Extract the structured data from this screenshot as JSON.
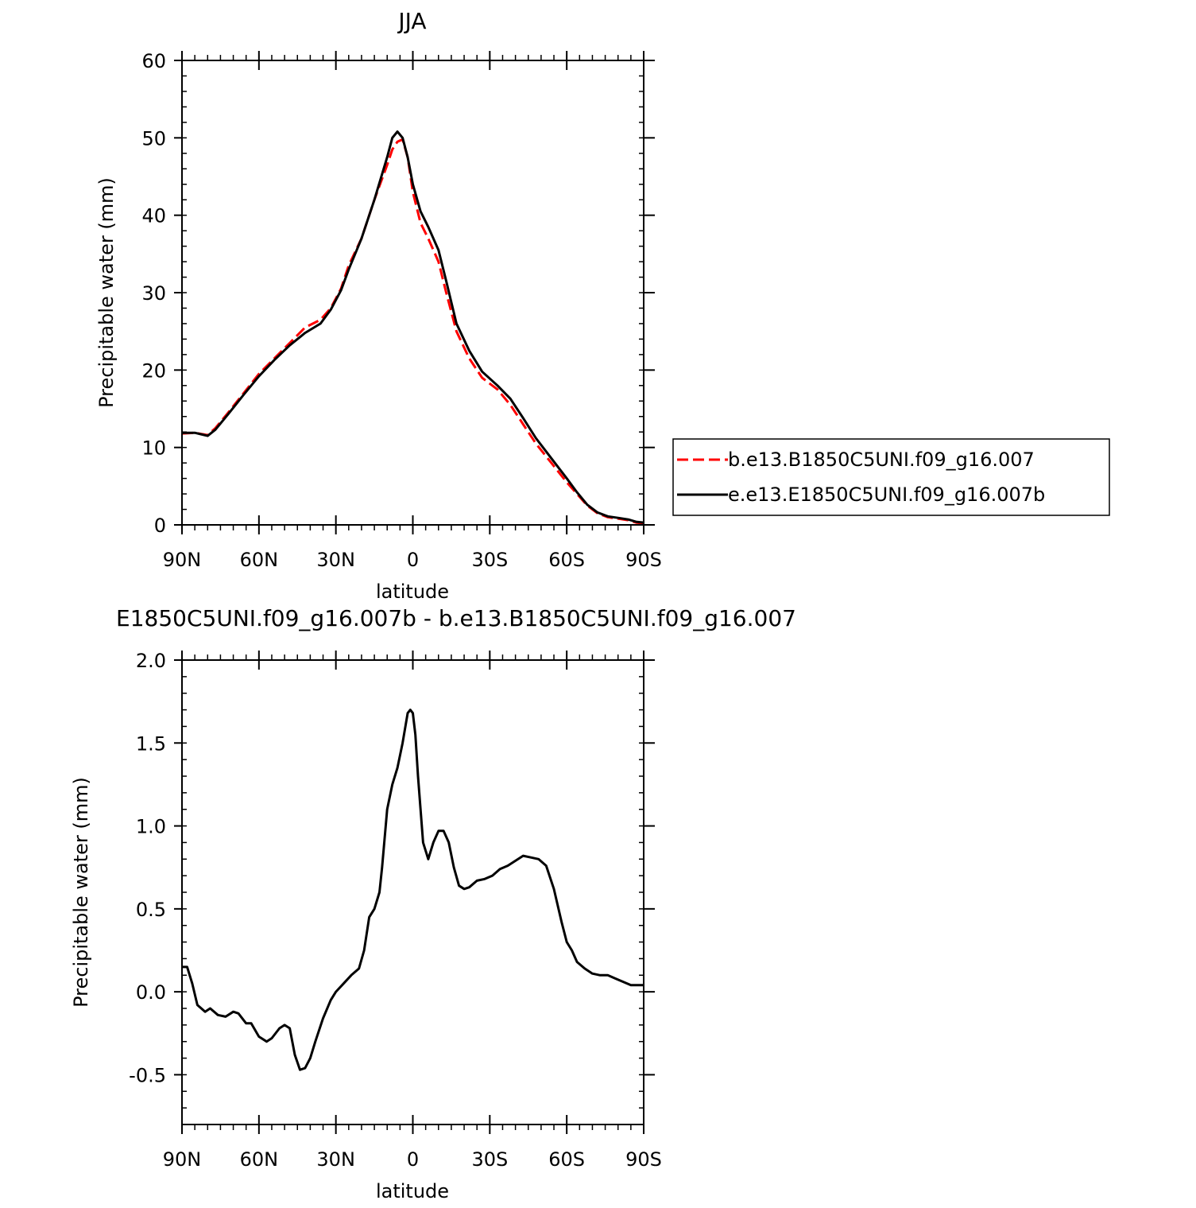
{
  "chart_data": [
    {
      "type": "line",
      "title": "JJA",
      "xlabel": "latitude",
      "ylabel": "Precipitable water (mm)",
      "xlim": [
        90,
        -90
      ],
      "ylim": [
        0,
        60
      ],
      "x_ticks": [
        90,
        60,
        30,
        0,
        -30,
        -60,
        -90
      ],
      "x_tick_labels": [
        "90N",
        "60N",
        "30N",
        "0",
        "30S",
        "60S",
        "90S"
      ],
      "y_ticks": [
        0,
        10,
        20,
        30,
        40,
        50,
        60
      ],
      "y_tick_labels": [
        "0",
        "10",
        "20",
        "30",
        "40",
        "50",
        "60"
      ],
      "grid": false,
      "legend_position": "right",
      "series": [
        {
          "name": "b.e13.B1850C5UNI.f09_g16.007",
          "color": "#ff0000",
          "dash": "dashed",
          "x": [
            90,
            85,
            80,
            77,
            72,
            66,
            60,
            54,
            48,
            42,
            36,
            32,
            28,
            25,
            20,
            15,
            10,
            8,
            6,
            4,
            2,
            0,
            -3,
            -6,
            -10,
            -13,
            -17,
            -22,
            -27,
            -33,
            -38,
            -43,
            -48,
            -54,
            -60,
            -64,
            -68,
            -72,
            -76,
            -80,
            -84,
            -87,
            -90
          ],
          "y": [
            11.8,
            11.9,
            11.6,
            12.5,
            14.5,
            17.0,
            19.5,
            21.5,
            23.5,
            25.5,
            26.5,
            28.0,
            30.5,
            33.5,
            37.0,
            42.0,
            46.5,
            48.5,
            49.5,
            49.8,
            47.5,
            43.0,
            39.0,
            37.0,
            34.0,
            30.0,
            25.0,
            21.5,
            19.0,
            17.5,
            15.5,
            13.0,
            10.5,
            8.0,
            5.5,
            4.0,
            2.5,
            1.5,
            1.0,
            0.8,
            0.6,
            0.3,
            0.2
          ]
        },
        {
          "name": "e.e13.E1850C5UNI.f09_g16.007b",
          "color": "#000000",
          "dash": "solid",
          "x": [
            90,
            85,
            80,
            77,
            72,
            66,
            60,
            54,
            48,
            42,
            36,
            32,
            28,
            25,
            20,
            15,
            10,
            8,
            6,
            4,
            2,
            0,
            -3,
            -6,
            -10,
            -13,
            -17,
            -22,
            -27,
            -33,
            -38,
            -43,
            -48,
            -54,
            -60,
            -64,
            -68,
            -72,
            -76,
            -80,
            -84,
            -87,
            -90
          ],
          "y": [
            11.9,
            11.9,
            11.5,
            12.3,
            14.3,
            16.8,
            19.2,
            21.3,
            23.2,
            24.8,
            26.0,
            27.8,
            30.3,
            33.0,
            37.0,
            42.0,
            47.5,
            50.0,
            50.8,
            50.0,
            47.5,
            44.0,
            40.5,
            38.5,
            35.5,
            31.5,
            26.0,
            22.5,
            19.8,
            18.0,
            16.3,
            13.8,
            11.2,
            8.6,
            6.0,
            4.2,
            2.6,
            1.6,
            1.1,
            0.9,
            0.7,
            0.4,
            0.3
          ]
        }
      ],
      "legend": [
        "b.e13.B1850C5UNI.f09_g16.007",
        "e.e13.E1850C5UNI.f09_g16.007b"
      ]
    },
    {
      "type": "line",
      "title": "E1850C5UNI.f09_g16.007b - b.e13.B1850C5UNI.f09_g16.007",
      "xlabel": "latitude",
      "ylabel": "Precipitable water (mm)",
      "xlim": [
        90,
        -90
      ],
      "ylim": [
        -0.8,
        2.0
      ],
      "x_ticks": [
        90,
        60,
        30,
        0,
        -30,
        -60,
        -90
      ],
      "x_tick_labels": [
        "90N",
        "60N",
        "30N",
        "0",
        "30S",
        "60S",
        "90S"
      ],
      "y_ticks": [
        -0.5,
        0.0,
        0.5,
        1.0,
        1.5,
        2.0
      ],
      "y_tick_labels": [
        "-0.5",
        "0.0",
        "0.5",
        "1.0",
        "1.5",
        "2.0"
      ],
      "grid": false,
      "series": [
        {
          "color": "#000000",
          "dash": "solid",
          "x": [
            90,
            88,
            86,
            84,
            81,
            79,
            76,
            73,
            70,
            68,
            65,
            63,
            60,
            57,
            55,
            52,
            50,
            48,
            46,
            44,
            42,
            40,
            38,
            35,
            32,
            30,
            27,
            24,
            21,
            19,
            17,
            15,
            13,
            12,
            10,
            8,
            6,
            4,
            2,
            1,
            0,
            -1,
            -2,
            -4,
            -6,
            -8,
            -10,
            -12,
            -14,
            -16,
            -18,
            -20,
            -22,
            -25,
            -28,
            -31,
            -34,
            -37,
            -40,
            -43,
            -46,
            -49,
            -52,
            -55,
            -58,
            -60,
            -62,
            -64,
            -67,
            -70,
            -73,
            -76,
            -79,
            -82,
            -85,
            -88,
            -90
          ],
          "y": [
            0.15,
            0.15,
            0.05,
            -0.08,
            -0.12,
            -0.1,
            -0.14,
            -0.15,
            -0.12,
            -0.13,
            -0.19,
            -0.19,
            -0.27,
            -0.3,
            -0.28,
            -0.22,
            -0.2,
            -0.22,
            -0.38,
            -0.47,
            -0.46,
            -0.4,
            -0.3,
            -0.16,
            -0.05,
            0.0,
            0.05,
            0.1,
            0.14,
            0.25,
            0.45,
            0.5,
            0.6,
            0.75,
            1.1,
            1.25,
            1.35,
            1.5,
            1.68,
            1.7,
            1.68,
            1.55,
            1.3,
            0.9,
            0.8,
            0.9,
            0.97,
            0.97,
            0.9,
            0.75,
            0.64,
            0.62,
            0.63,
            0.67,
            0.68,
            0.7,
            0.74,
            0.76,
            0.79,
            0.82,
            0.81,
            0.8,
            0.76,
            0.62,
            0.42,
            0.3,
            0.25,
            0.18,
            0.14,
            0.11,
            0.1,
            0.1,
            0.08,
            0.06,
            0.04,
            0.04,
            0.04
          ]
        }
      ]
    }
  ]
}
